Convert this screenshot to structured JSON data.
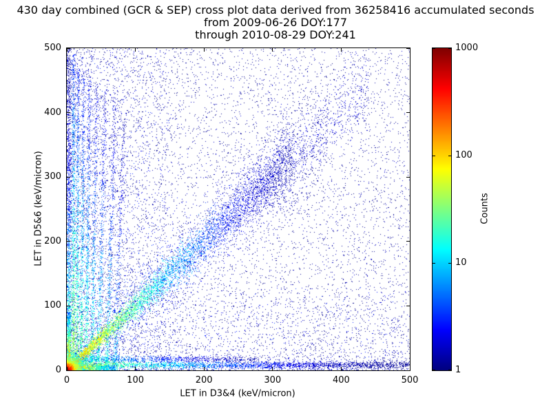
{
  "chart_data": {
    "type": "heatmap",
    "title": "430 day combined (GCR & SEP) cross plot data derived from 36258416 accumulated seconds",
    "subtitle": [
      "from 2009-06-26 DOY:177",
      "through 2010-08-29 DOY:241"
    ],
    "xlabel": "LET in D3&4 (keV/micron)",
    "ylabel": "LET in D5&6 (keV/micron)",
    "xlim": [
      0,
      500
    ],
    "ylim": [
      0,
      500
    ],
    "xticks": [
      0,
      100,
      200,
      300,
      400,
      500
    ],
    "yticks": [
      0,
      100,
      200,
      300,
      400,
      500
    ],
    "grid": false,
    "legend": "none",
    "colorbar": {
      "label": "Counts",
      "scale": "log",
      "min": 1,
      "max": 1000,
      "ticks": [
        1,
        10,
        100,
        1000
      ],
      "tick_labels": [
        "1",
        "10",
        "100",
        "1000"
      ],
      "colormap": "jet"
    },
    "background_point_color": "#000080",
    "hotspot_color": "#8b0000",
    "density_features": [
      {
        "kind": "uniform",
        "n": 6500,
        "xr": [
          0,
          500
        ],
        "yr": [
          0,
          500
        ],
        "xpow": 1,
        "ypow": 1,
        "c": [
          1,
          2
        ]
      },
      {
        "kind": "uniform",
        "n": 2600,
        "xr": [
          0,
          150
        ],
        "yr": [
          0,
          500
        ],
        "xpow": 1.7,
        "ypow": 1,
        "c": [
          1,
          4
        ]
      },
      {
        "kind": "uniform",
        "n": 1700,
        "xr": [
          0,
          500
        ],
        "yr": [
          0,
          130
        ],
        "xpow": 1.2,
        "ypow": 1.8,
        "c": [
          1,
          4
        ]
      },
      {
        "kind": "diag",
        "n": 1800,
        "xmin": 0,
        "xmax": 380,
        "xpow": 1.25,
        "sig0": 14,
        "sigk": 0.12,
        "cmax": 6,
        "xscale": 130
      },
      {
        "kind": "vline",
        "n": 1000,
        "x0": 10,
        "slope": 0,
        "sigma": 1.3,
        "ymax": 490,
        "ypow": 1.6,
        "cmax": 60,
        "yscale": 170
      },
      {
        "kind": "vline",
        "n": 820,
        "x0": 15,
        "slope": 0.004,
        "sigma": 1.3,
        "ymax": 475,
        "ypow": 1.6,
        "cmax": 45,
        "yscale": 160
      },
      {
        "kind": "vline",
        "n": 750,
        "x0": 21,
        "slope": 0.008,
        "sigma": 1.4,
        "ymax": 465,
        "ypow": 1.7,
        "cmax": 38,
        "yscale": 155
      },
      {
        "kind": "vline",
        "n": 700,
        "x0": 28,
        "slope": 0.012,
        "sigma": 1.5,
        "ymax": 455,
        "ypow": 1.7,
        "cmax": 32,
        "yscale": 150
      },
      {
        "kind": "vline",
        "n": 640,
        "x0": 36,
        "slope": 0.018,
        "sigma": 1.6,
        "ymax": 445,
        "ypow": 1.8,
        "cmax": 27,
        "yscale": 145
      },
      {
        "kind": "vline",
        "n": 600,
        "x0": 46,
        "slope": 0.024,
        "sigma": 1.7,
        "ymax": 435,
        "ypow": 1.8,
        "cmax": 23,
        "yscale": 140
      },
      {
        "kind": "vline",
        "n": 580,
        "x0": 58,
        "slope": 0.03,
        "sigma": 1.8,
        "ymax": 425,
        "ypow": 1.9,
        "cmax": 20,
        "yscale": 135
      },
      {
        "kind": "vline",
        "n": 420,
        "x0": 70,
        "slope": 0.036,
        "sigma": 1.9,
        "ymax": 390,
        "ypow": 2.0,
        "cmax": 12,
        "yscale": 130
      },
      {
        "kind": "hline",
        "n": 900,
        "y0": 17,
        "sigma": 2.6,
        "xmin": 0,
        "xmax": 280,
        "xpow": 1.3,
        "cmax": 22,
        "xscale": 70
      },
      {
        "kind": "hline",
        "n": 2600,
        "y0": 8,
        "sigma": 2.8,
        "xmin": 0,
        "xmax": 500,
        "xpow": 1.25,
        "cmax": 70,
        "xscale": 85
      },
      {
        "kind": "vline",
        "n": 1500,
        "x0": 3,
        "slope": 0,
        "sigma": 2.2,
        "ymax": 500,
        "ypow": 1.5,
        "cmax": 50,
        "yscale": 95
      },
      {
        "kind": "diag",
        "n": 700,
        "xmin": 280,
        "xmax": 440,
        "xpow": 1,
        "sig0": 8,
        "sigk": 0.05,
        "cmax": 3,
        "xscale": 400
      },
      {
        "kind": "diag",
        "n": 5200,
        "xmin": 0,
        "xmax": 330,
        "xpow": 1.35,
        "sig0": 2.5,
        "sigk": 0.07,
        "cmax": 170,
        "xscale": 55
      },
      {
        "kind": "hline",
        "n": 900,
        "y0": 4,
        "sigma": 2,
        "xmin": 0,
        "xmax": 70,
        "xpow": 1.5,
        "cmax": 450,
        "xscale": 16
      },
      {
        "kind": "vline",
        "n": 700,
        "x0": 3,
        "slope": 0,
        "sigma": 1.5,
        "ymax": 90,
        "ypow": 1.4,
        "cmax": 350,
        "yscale": 22
      },
      {
        "kind": "blob",
        "n": 1600,
        "sx": 11,
        "sy": 11,
        "cmax": 300,
        "rscale": 9
      },
      {
        "kind": "blob",
        "n": 1900,
        "sx": 4,
        "sy": 4,
        "cmax": 1150,
        "rscale": 5
      }
    ]
  }
}
